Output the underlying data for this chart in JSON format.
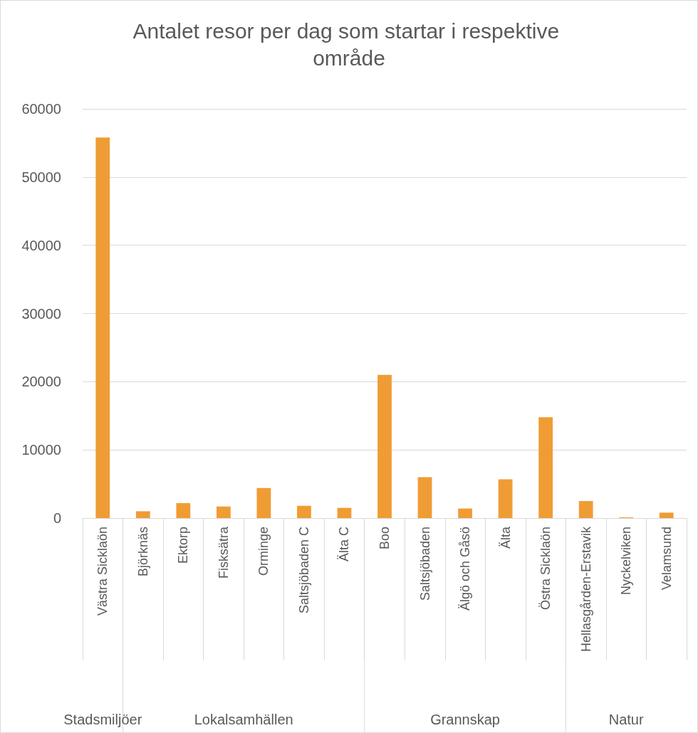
{
  "chart_data": {
    "type": "bar",
    "title": "Antalet resor per dag som startar i respektive område",
    "categories": [
      "Västra Sicklaön",
      "Björknäs",
      "Ektorp",
      "Fisksätra",
      "Orminge",
      "Saltsjöbaden C",
      "Älta C",
      "Boo",
      "Saltsjöbaden",
      "Älgö och Gåsö",
      "Älta",
      "Östra Sicklaön",
      "Hellasgården-Erstavik",
      "Nyckelviken",
      "Velamsund"
    ],
    "values": [
      55800,
      1000,
      2200,
      1700,
      4400,
      1800,
      1500,
      21000,
      6000,
      1400,
      5700,
      14800,
      2500,
      100,
      800
    ],
    "color": "#f09c35",
    "ylim": [
      0,
      60000
    ],
    "yticks": [
      0,
      10000,
      20000,
      30000,
      40000,
      50000,
      60000
    ],
    "grid": "y",
    "annotations": [
      "Stadsmiljöer",
      "Lokalsamhällen",
      "Grannskap",
      "Natur"
    ]
  }
}
